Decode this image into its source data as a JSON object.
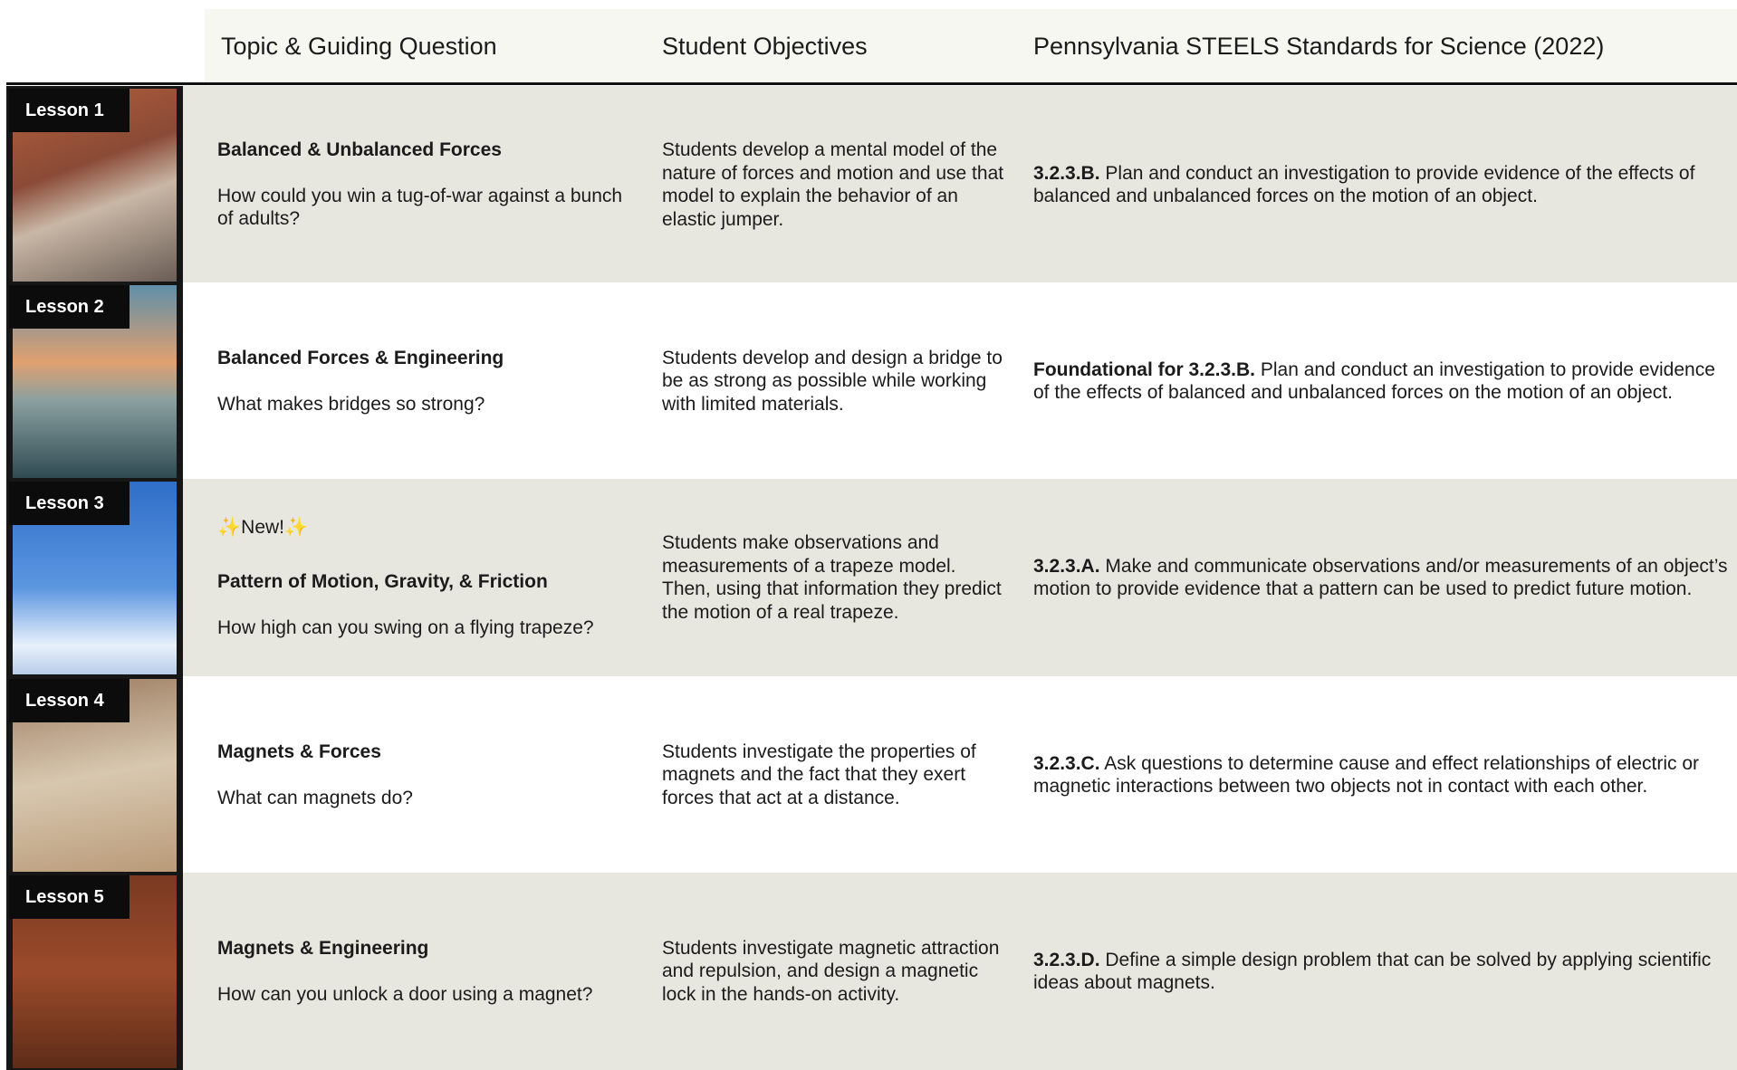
{
  "header": {
    "columns": [
      "Topic & Guiding Question",
      "Student Objectives",
      "Pennsylvania STEELS Standards for Science (2022)"
    ]
  },
  "lessons": [
    {
      "label": "Lesson 1",
      "title": "Balanced & Unbalanced Forces",
      "question": "How could you win a tug-of-war against a bunch of adults?",
      "objective": "Students develop a mental model of the nature of forces and motion and use that model to explain the behavior of an elastic jumper.",
      "standard_code": "3.2.3.B.",
      "standard_text": "Plan and conduct an investigation to provide evidence of the effects of balanced and unbalanced forces on the motion of an object."
    },
    {
      "label": "Lesson 2",
      "title": "Balanced Forces & Engineering",
      "question": "What makes bridges so strong?",
      "objective": "Students develop and design a bridge to be as strong as possible while working with limited materials.",
      "standard_code": "Foundational for 3.2.3.B.",
      "standard_text": "Plan and conduct an investigation to provide evidence of the effects of balanced and unbalanced forces on the motion of an object."
    },
    {
      "label": "Lesson 3",
      "badge": "✨New!✨",
      "title": "Pattern of Motion, Gravity, & Friction",
      "question": "How high can you swing on a flying trapeze?",
      "objective": "Students make observations and measurements of a trapeze model. Then, using that information they predict the motion of a real trapeze.",
      "standard_code": "3.2.3.A.",
      "standard_text": "Make and communicate observations and/or measurements of an object’s motion to provide evidence that a pattern can be used to predict future motion."
    },
    {
      "label": "Lesson 4",
      "title": "Magnets & Forces",
      "question": "What can magnets do?",
      "objective": "Students investigate the properties of magnets and the fact that they exert forces that act at a distance.",
      "standard_code": "3.2.3.C.",
      "standard_text": "Ask questions to determine cause and effect relationships of electric or magnetic interactions between two objects not in contact with each other."
    },
    {
      "label": "Lesson 5",
      "title": "Magnets & Engineering",
      "question": "How can you unlock a door using a magnet?",
      "objective": "Students investigate magnetic attraction and repulsion, and design a magnetic lock in the hands-on activity.",
      "standard_code": "3.2.3.D.",
      "standard_text": "Define a simple design problem that can be solved by applying scientific ideas about magnets."
    }
  ]
}
